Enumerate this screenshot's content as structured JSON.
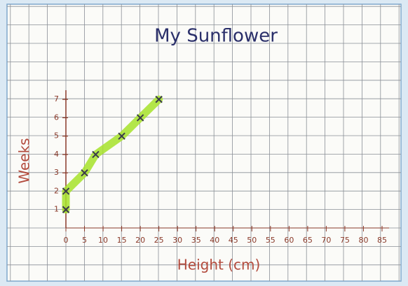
{
  "chart_data": {
    "type": "line",
    "title": "My Sunflower",
    "x_label": "Height (cm)",
    "y_label": "Weeks",
    "x": [
      0,
      0,
      5,
      8,
      15,
      20,
      25
    ],
    "values": [
      1,
      2,
      3,
      4,
      5,
      6,
      7
    ],
    "color": "#a6e22a",
    "marker_color": "#3a3a4a",
    "xlim": [
      0,
      85
    ],
    "ylim": [
      0,
      7.5
    ],
    "xticks": [
      0,
      5,
      10,
      15,
      20,
      25,
      30,
      35,
      40,
      45,
      50,
      55,
      60,
      65,
      70,
      75,
      80,
      85
    ],
    "yticks": [
      1,
      2,
      3,
      4,
      5,
      6,
      7
    ],
    "grid": true
  }
}
